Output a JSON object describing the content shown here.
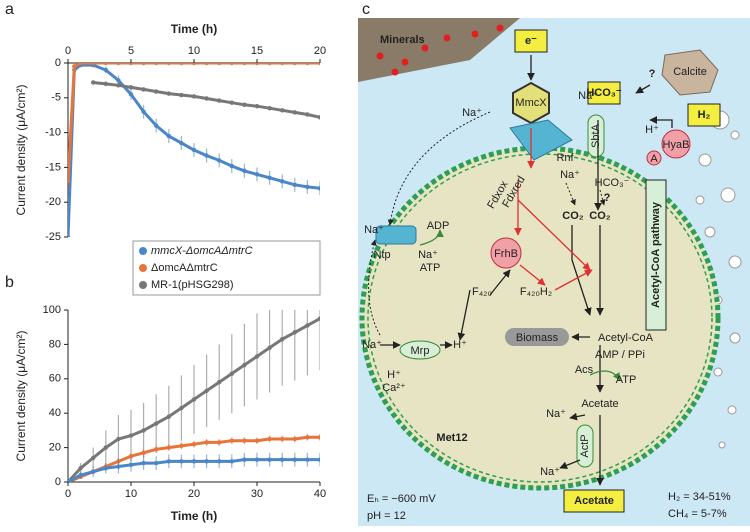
{
  "chart_data": [
    {
      "type": "line",
      "panel": "a",
      "x_axis_position": "top",
      "legend_position": "below",
      "xlabel": "Time (h)",
      "ylabel": "Current density (μA/cm²)",
      "xlim": [
        0,
        20
      ],
      "xticks": [
        0,
        5,
        10,
        15,
        20
      ],
      "ylim": [
        -25,
        0
      ],
      "yticks": [
        0,
        -5,
        -10,
        -15,
        -20,
        -25
      ],
      "x": [
        0,
        0.5,
        1,
        2,
        3,
        4,
        5,
        6,
        7,
        8,
        9,
        10,
        11,
        12,
        13,
        14,
        15,
        16,
        17,
        18,
        19,
        20
      ],
      "series": [
        {
          "name": "mmcX-ΔomcAΔmtrC",
          "color": "#4a86c8",
          "values": [
            -25,
            -1,
            -0.3,
            -0.3,
            -1,
            -2.5,
            -4.5,
            -7,
            -9,
            -10.5,
            -11.5,
            -12.5,
            -13.3,
            -14,
            -14.8,
            -15.5,
            -16,
            -16.5,
            -17,
            -17.5,
            -17.8,
            -18
          ],
          "errors": [
            0.5,
            0.5,
            0.3,
            0.3,
            0.5,
            0.7,
            0.8,
            1,
            1,
            1,
            1,
            1,
            1,
            1,
            1,
            1,
            1,
            1,
            1,
            1,
            1,
            1
          ]
        },
        {
          "name": "ΔomcAΔmtrC",
          "color": "#e8743b",
          "values": [
            -17,
            -0.5,
            0,
            0,
            0,
            0,
            0,
            0,
            0,
            0,
            0,
            0,
            0,
            0,
            0,
            0,
            0,
            0,
            0,
            0,
            0,
            0
          ],
          "errors": [
            1.5,
            0.5,
            0.2,
            0.2,
            0.2,
            0.2,
            0.2,
            0.2,
            0.2,
            0.2,
            0.2,
            0.2,
            0.2,
            0.2,
            0.2,
            0.2,
            0.2,
            0.2,
            0.2,
            0.2,
            0.2,
            0.2
          ]
        },
        {
          "name": "MR-1(pHSG298)",
          "color": "#777777",
          "values": [
            null,
            null,
            null,
            -2.8,
            -3,
            -3.2,
            -3.5,
            -3.8,
            -4.1,
            -4.4,
            -4.6,
            -4.8,
            -5.1,
            -5.4,
            -5.7,
            -6,
            -6.2,
            -6.5,
            -6.8,
            -7.1,
            -7.4,
            -7.8
          ],
          "errors": [
            null,
            null,
            null,
            0.3,
            0.3,
            0.3,
            0.3,
            0.3,
            0.3,
            0.3,
            0.3,
            0.3,
            0.3,
            0.3,
            0.3,
            0.3,
            0.3,
            0.3,
            0.3,
            0.3,
            0.3,
            0.3
          ]
        }
      ]
    },
    {
      "type": "line",
      "panel": "b",
      "x_axis_position": "bottom",
      "xlabel": "Time (h)",
      "ylabel": "Current density (μA/cm²)",
      "xlim": [
        0,
        40
      ],
      "xticks": [
        0,
        10,
        20,
        30,
        40
      ],
      "ylim": [
        0,
        100
      ],
      "yticks": [
        0,
        20,
        40,
        60,
        80,
        100
      ],
      "x": [
        0,
        2,
        4,
        6,
        8,
        10,
        12,
        14,
        16,
        18,
        20,
        22,
        24,
        26,
        28,
        30,
        32,
        34,
        36,
        38,
        40
      ],
      "series": [
        {
          "color": "#777777",
          "values": [
            0,
            8,
            14,
            20,
            25,
            27,
            30,
            34,
            38,
            43,
            48,
            53,
            58,
            63,
            68,
            73,
            78,
            83,
            87,
            91,
            95
          ],
          "errors": [
            0,
            3,
            6,
            10,
            14,
            15,
            16,
            17,
            18,
            19,
            20,
            21,
            22,
            23,
            24,
            25,
            26,
            27,
            28,
            29,
            30
          ]
        },
        {
          "color": "#e8743b",
          "values": [
            0,
            3,
            6,
            9,
            12,
            15,
            17,
            19,
            20,
            21,
            22,
            23,
            23,
            24,
            24,
            24,
            25,
            25,
            25,
            26,
            26
          ],
          "errors": [
            0,
            1,
            1.5,
            2,
            2,
            2,
            2,
            2,
            2,
            2,
            2,
            2,
            2,
            2,
            2,
            2,
            2,
            2,
            2,
            2,
            2
          ]
        },
        {
          "color": "#4a86c8",
          "values": [
            0,
            4,
            6,
            8,
            9,
            10,
            11,
            11,
            12,
            12,
            12,
            12,
            12,
            12,
            13,
            13,
            13,
            13,
            13,
            13,
            13
          ],
          "errors": [
            0,
            2,
            3,
            3,
            4,
            4,
            4,
            4,
            4,
            4,
            4,
            4,
            4,
            4,
            4,
            4,
            4,
            4,
            4,
            4,
            4
          ]
        }
      ]
    }
  ],
  "diagram": {
    "panel": "c",
    "labels": [
      "Minerals",
      "e⁻",
      "Calcite",
      "HCO₃⁻",
      "H₂",
      "?",
      "H⁺",
      "Na⁺",
      "MmcX",
      "Na⁺",
      "Rnf",
      "SbtA",
      "HyaB",
      "A",
      "Na⁺",
      "HCO₃⁻",
      "Fdxox",
      "Fdxred",
      "CO₂",
      "CO₂",
      "?",
      "Acetyl-CoA pathway",
      "Na⁺",
      "Ntp",
      "Na⁺",
      "ADP",
      "ATP",
      "FrhB",
      "F₄₂₀",
      "F₄₂₀H₂",
      "Biomass",
      "Acetyl-CoA",
      "Na⁺",
      "Mrp",
      "H⁺",
      "H⁺",
      "Ca²⁺",
      "AMP / PPi",
      "Acs",
      "ATP",
      "Acetate",
      "Na⁺",
      "Met12",
      "ActP",
      "Na⁺",
      "Acetate",
      "Eₕ = −600 mV",
      "pH = 12",
      "H₂ = 34-51%",
      "CH₄ = 5-7%"
    ]
  }
}
